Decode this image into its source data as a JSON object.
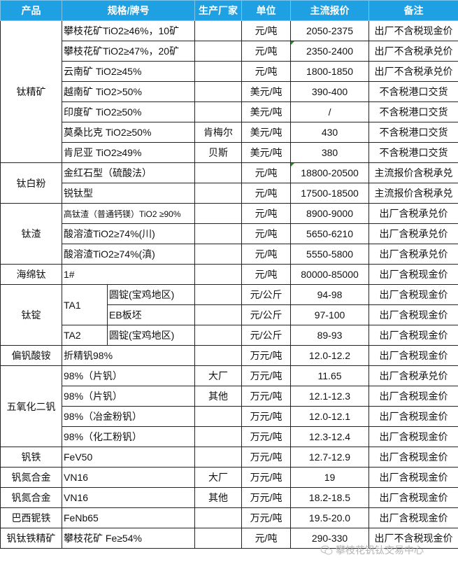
{
  "header": [
    "产品",
    "规格/牌号",
    "生产厂家",
    "单位",
    "主流报价",
    "备注"
  ],
  "rows": [
    {
      "cells": [
        {
          "t": "钛精矿",
          "rs": 7
        },
        {
          "t": "攀枝花矿TiO2≥46%，10矿",
          "cs": 2
        },
        {
          "t": ""
        },
        {
          "t": "元/吨"
        },
        {
          "t": "2050-2375"
        },
        {
          "t": "出厂不含税现金价"
        }
      ]
    },
    {
      "cells": [
        {
          "t": "攀枝花矿TiO2≥47%，20矿",
          "cs": 2
        },
        {
          "t": ""
        },
        {
          "t": "元/吨"
        },
        {
          "t": "2350-2400",
          "mark": true
        },
        {
          "t": "出厂不含税承兑价"
        }
      ]
    },
    {
      "cells": [
        {
          "t": "云南矿 TiO2≥45%",
          "cs": 2
        },
        {
          "t": ""
        },
        {
          "t": "元/吨"
        },
        {
          "t": "1800-1850"
        },
        {
          "t": "出厂不含税承兑价"
        }
      ]
    },
    {
      "cells": [
        {
          "t": "越南矿 TiO2>50%",
          "cs": 2
        },
        {
          "t": ""
        },
        {
          "t": "美元/吨"
        },
        {
          "t": "390-400"
        },
        {
          "t": "不含税港口交货"
        }
      ]
    },
    {
      "cells": [
        {
          "t": "印度矿 TiO2≥50%",
          "cs": 2
        },
        {
          "t": ""
        },
        {
          "t": "美元/吨"
        },
        {
          "t": "/"
        },
        {
          "t": "不含税港口交货"
        }
      ]
    },
    {
      "cells": [
        {
          "t": "莫桑比克 TiO2≥50%",
          "cs": 2
        },
        {
          "t": "肯梅尔"
        },
        {
          "t": "美元/吨"
        },
        {
          "t": "430"
        },
        {
          "t": "不含税港口交货"
        }
      ]
    },
    {
      "cells": [
        {
          "t": "肯尼亚 TiO2≥49%",
          "cs": 2
        },
        {
          "t": "贝斯"
        },
        {
          "t": "美元/吨"
        },
        {
          "t": "380"
        },
        {
          "t": "不含税港口交货"
        }
      ]
    },
    {
      "cells": [
        {
          "t": "钛白粉",
          "rs": 2
        },
        {
          "t": "金红石型（硫酸法）",
          "cs": 2
        },
        {
          "t": ""
        },
        {
          "t": "元/吨"
        },
        {
          "t": "18800-20500",
          "mark": true
        },
        {
          "t": "主流报价含税承兑"
        }
      ]
    },
    {
      "cells": [
        {
          "t": "锐钛型",
          "cs": 2
        },
        {
          "t": ""
        },
        {
          "t": "元/吨"
        },
        {
          "t": "17500-18500"
        },
        {
          "t": "主流报价含税承兑"
        }
      ]
    },
    {
      "cells": [
        {
          "t": "钛渣",
          "rs": 3
        },
        {
          "t": "高钛渣（普通钙镁）TiO2 ≥90%",
          "cs": 2,
          "small": true
        },
        {
          "t": ""
        },
        {
          "t": "元/吨"
        },
        {
          "t": "8900-9000"
        },
        {
          "t": "出厂含税承兑价"
        }
      ]
    },
    {
      "cells": [
        {
          "t": "酸溶渣TiO2≥74%(川)",
          "cs": 2
        },
        {
          "t": ""
        },
        {
          "t": "元/吨"
        },
        {
          "t": "5650-6210"
        },
        {
          "t": "出厂含税承兑价"
        }
      ]
    },
    {
      "cells": [
        {
          "t": "酸溶渣TiO2≥74%(滇)",
          "cs": 2
        },
        {
          "t": ""
        },
        {
          "t": "元/吨"
        },
        {
          "t": "5550-5800"
        },
        {
          "t": "出厂含税承兑价"
        }
      ]
    },
    {
      "cells": [
        {
          "t": "海绵钛"
        },
        {
          "t": "1#",
          "cs": 2
        },
        {
          "t": ""
        },
        {
          "t": "元/吨"
        },
        {
          "t": "80000-85000"
        },
        {
          "t": "出厂含税现金价"
        }
      ]
    },
    {
      "cells": [
        {
          "t": "钛锭",
          "rs": 3
        },
        {
          "t": "TA1",
          "rs": 2
        },
        {
          "t": "圆锭(宝鸡地区)"
        },
        {
          "t": ""
        },
        {
          "t": "元/公斤"
        },
        {
          "t": "94-98"
        },
        {
          "t": "出厂含税现金价"
        }
      ]
    },
    {
      "cells": [
        {
          "t": "EB板坯"
        },
        {
          "t": ""
        },
        {
          "t": "元/公斤"
        },
        {
          "t": "97-100"
        },
        {
          "t": "出厂含税现金价"
        }
      ]
    },
    {
      "cells": [
        {
          "t": "TA2"
        },
        {
          "t": "圆锭(宝鸡地区)"
        },
        {
          "t": ""
        },
        {
          "t": "元/公斤"
        },
        {
          "t": "89-93"
        },
        {
          "t": "出厂含税现金价"
        }
      ]
    },
    {
      "cells": [
        {
          "t": "偏钒酸铵"
        },
        {
          "t": "折精钒98%",
          "cs": 2
        },
        {
          "t": ""
        },
        {
          "t": "万元/吨"
        },
        {
          "t": "12.0-12.2"
        },
        {
          "t": "出厂含税现金价"
        }
      ]
    },
    {
      "cells": [
        {
          "t": "五氧化二钒",
          "rs": 4
        },
        {
          "t": "98%（片钒）",
          "cs": 2
        },
        {
          "t": "大厂"
        },
        {
          "t": "万元/吨"
        },
        {
          "t": "11.65"
        },
        {
          "t": "出厂含税承兑价"
        }
      ]
    },
    {
      "cells": [
        {
          "t": "98%（片钒）",
          "cs": 2
        },
        {
          "t": "其他"
        },
        {
          "t": "万元/吨"
        },
        {
          "t": "12.1-12.3"
        },
        {
          "t": "出厂含税现金价"
        }
      ]
    },
    {
      "cells": [
        {
          "t": "98%（冶金粉钒）",
          "cs": 2
        },
        {
          "t": ""
        },
        {
          "t": "万元/吨"
        },
        {
          "t": "12.0-12.1"
        },
        {
          "t": "出厂含税现金价"
        }
      ]
    },
    {
      "cells": [
        {
          "t": "98%（化工粉钒）",
          "cs": 2
        },
        {
          "t": ""
        },
        {
          "t": "万元/吨"
        },
        {
          "t": "12.3-12.4"
        },
        {
          "t": "出厂含税现金价"
        }
      ]
    },
    {
      "cells": [
        {
          "t": "钒铁"
        },
        {
          "t": "FeV50",
          "cs": 2
        },
        {
          "t": ""
        },
        {
          "t": "万元/吨"
        },
        {
          "t": "12.7-12.9"
        },
        {
          "t": "出厂含税现金价"
        }
      ]
    },
    {
      "cells": [
        {
          "t": "钒氮合金"
        },
        {
          "t": "VN16",
          "cs": 2
        },
        {
          "t": "大厂"
        },
        {
          "t": "万元/吨"
        },
        {
          "t": "19"
        },
        {
          "t": "出厂含税现金价"
        }
      ]
    },
    {
      "cells": [
        {
          "t": "钒氮合金"
        },
        {
          "t": "VN16",
          "cs": 2
        },
        {
          "t": "其他"
        },
        {
          "t": "万元/吨"
        },
        {
          "t": "18.2-18.5"
        },
        {
          "t": "出厂含税现金价"
        }
      ]
    },
    {
      "cells": [
        {
          "t": "巴西铌铁"
        },
        {
          "t": "FeNb65",
          "cs": 2
        },
        {
          "t": ""
        },
        {
          "t": "万元/吨"
        },
        {
          "t": "19.5-20.0"
        },
        {
          "t": "出厂含税现金价"
        }
      ]
    },
    {
      "cells": [
        {
          "t": "钒钛铁精矿"
        },
        {
          "t": "攀枝花矿 Fe≥54%",
          "cs": 2
        },
        {
          "t": ""
        },
        {
          "t": "元/吨"
        },
        {
          "t": "290-330"
        },
        {
          "t": "出厂不含税现金价"
        }
      ]
    }
  ],
  "watermark": {
    "text": "攀枝花钒钛交易中心",
    "icon": "wechat-icon"
  },
  "colors": {
    "header_bg": "#1EA0E2",
    "header_text": "#FFFFFF"
  }
}
